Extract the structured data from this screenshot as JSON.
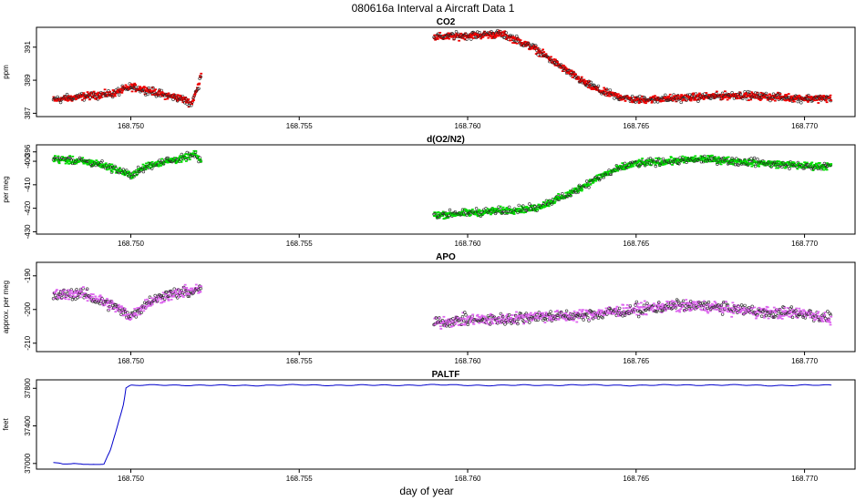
{
  "figure": {
    "title": "080616a   Interval a Aircraft Data 1",
    "xlabel": "day of year"
  },
  "chart_data": [
    {
      "type": "scatter",
      "title": "CO2",
      "ylabel": "ppm",
      "xlim": [
        168.7472,
        168.7715
      ],
      "ylim": [
        386.8,
        392.2
      ],
      "yticks": [
        387,
        389,
        391
      ],
      "xticks": [
        168.75,
        168.755,
        168.76,
        168.765,
        168.77
      ],
      "xtick_labels": [
        "168.750",
        "168.755",
        "168.760",
        "168.765",
        "168.770"
      ],
      "color": "#ee0000",
      "segments": [
        {
          "x": [
            168.7477,
            168.7485,
            168.7495,
            168.75,
            168.7505,
            168.751,
            168.7515,
            168.7518,
            168.752,
            168.7521
          ],
          "y": [
            387.8,
            388.0,
            388.2,
            388.6,
            388.4,
            388.1,
            387.9,
            387.6,
            388.6,
            389.6
          ]
        },
        {
          "x": [
            168.759,
            168.76,
            168.761,
            168.7615,
            168.762,
            168.7625,
            168.763,
            168.7635,
            168.764,
            168.7645,
            168.765,
            168.766,
            168.767,
            168.768,
            168.769,
            168.77,
            168.7708
          ],
          "y": [
            391.6,
            391.7,
            391.8,
            391.4,
            390.9,
            390.2,
            389.5,
            388.8,
            388.3,
            388.0,
            387.8,
            387.9,
            388.0,
            388.1,
            388.0,
            387.9,
            387.9
          ]
        }
      ]
    },
    {
      "type": "scatter",
      "title": "d(O2/N2)",
      "ylabel": "per meg",
      "xlim": [
        168.7472,
        168.7715
      ],
      "ylim": [
        -431,
        -393
      ],
      "yticks": [
        -396,
        -400,
        -410,
        -420,
        -430
      ],
      "ytick_labels": [
        "-396",
        "-400",
        "-410",
        "-420",
        "-430"
      ],
      "xticks": [
        168.75,
        168.755,
        168.76,
        168.765,
        168.77
      ],
      "xtick_labels": [
        "168.750",
        "168.755",
        "168.760",
        "168.765",
        "168.770"
      ],
      "color": "#00dd00",
      "segments": [
        {
          "x": [
            168.7477,
            168.7485,
            168.749,
            168.7495,
            168.75,
            168.7505,
            168.751,
            168.7515,
            168.7519,
            168.7521
          ],
          "y": [
            -399,
            -400,
            -401,
            -403,
            -406,
            -402,
            -400,
            -399,
            -397,
            -400
          ]
        },
        {
          "x": [
            168.759,
            168.76,
            168.761,
            168.762,
            168.7625,
            168.763,
            168.7635,
            168.764,
            168.7645,
            168.765,
            168.766,
            168.767,
            168.768,
            168.769,
            168.77,
            168.7708
          ],
          "y": [
            -423,
            -422,
            -421,
            -420,
            -417,
            -414,
            -410,
            -406,
            -403,
            -401,
            -400,
            -399,
            -400,
            -401,
            -402,
            -402
          ]
        }
      ]
    },
    {
      "type": "scatter",
      "title": "APO",
      "ylabel": "approx. per meg",
      "xlim": [
        168.7472,
        168.7715
      ],
      "ylim": [
        -212.5,
        -186
      ],
      "yticks": [
        -190,
        -200,
        -210
      ],
      "ytick_labels": [
        "-190",
        "-200",
        "-210"
      ],
      "xticks": [
        168.75,
        168.755,
        168.76,
        168.765,
        168.77
      ],
      "xtick_labels": [
        "168.750",
        "168.755",
        "168.760",
        "168.765",
        "168.770"
      ],
      "color": "#dd66ee",
      "segments": [
        {
          "x": [
            168.7477,
            168.7485,
            168.749,
            168.7495,
            168.75,
            168.7505,
            168.751,
            168.7515,
            168.7521
          ],
          "y": [
            -196,
            -195,
            -197,
            -199,
            -202,
            -198,
            -196,
            -195,
            -194
          ]
        },
        {
          "x": [
            168.759,
            168.76,
            168.761,
            168.762,
            168.763,
            168.764,
            168.765,
            168.766,
            168.767,
            168.768,
            168.769,
            168.77,
            168.7708
          ],
          "y": [
            -204,
            -203,
            -203,
            -202,
            -202,
            -201,
            -200,
            -199,
            -199,
            -200,
            -201,
            -201,
            -203
          ]
        }
      ]
    },
    {
      "type": "line",
      "title": "PALTF",
      "ylabel": "feet",
      "xlim": [
        168.7472,
        168.7715
      ],
      "ylim": [
        36940,
        37890
      ],
      "yticks": [
        37000,
        37400,
        37800
      ],
      "ytick_labels": [
        "37000",
        "37400",
        "37800"
      ],
      "xticks": [
        168.75,
        168.755,
        168.76,
        168.765,
        168.77
      ],
      "xtick_labels": [
        "168.750",
        "168.755",
        "168.760",
        "168.765",
        "168.770"
      ],
      "color": "#0000cc",
      "x": [
        168.7477,
        168.748,
        168.7483,
        168.7486,
        168.7489,
        168.7492,
        168.7494,
        168.7496,
        168.7498,
        168.74985,
        168.75,
        168.751,
        168.753,
        168.755,
        168.757,
        168.759,
        168.761,
        168.763,
        168.765,
        168.767,
        168.769,
        168.7708
      ],
      "y": [
        37010,
        36990,
        37000,
        36985,
        36995,
        36990,
        37150,
        37400,
        37650,
        37800,
        37830,
        37835,
        37830,
        37835,
        37832,
        37836,
        37831,
        37835,
        37832,
        37836,
        37831,
        37833
      ]
    }
  ]
}
